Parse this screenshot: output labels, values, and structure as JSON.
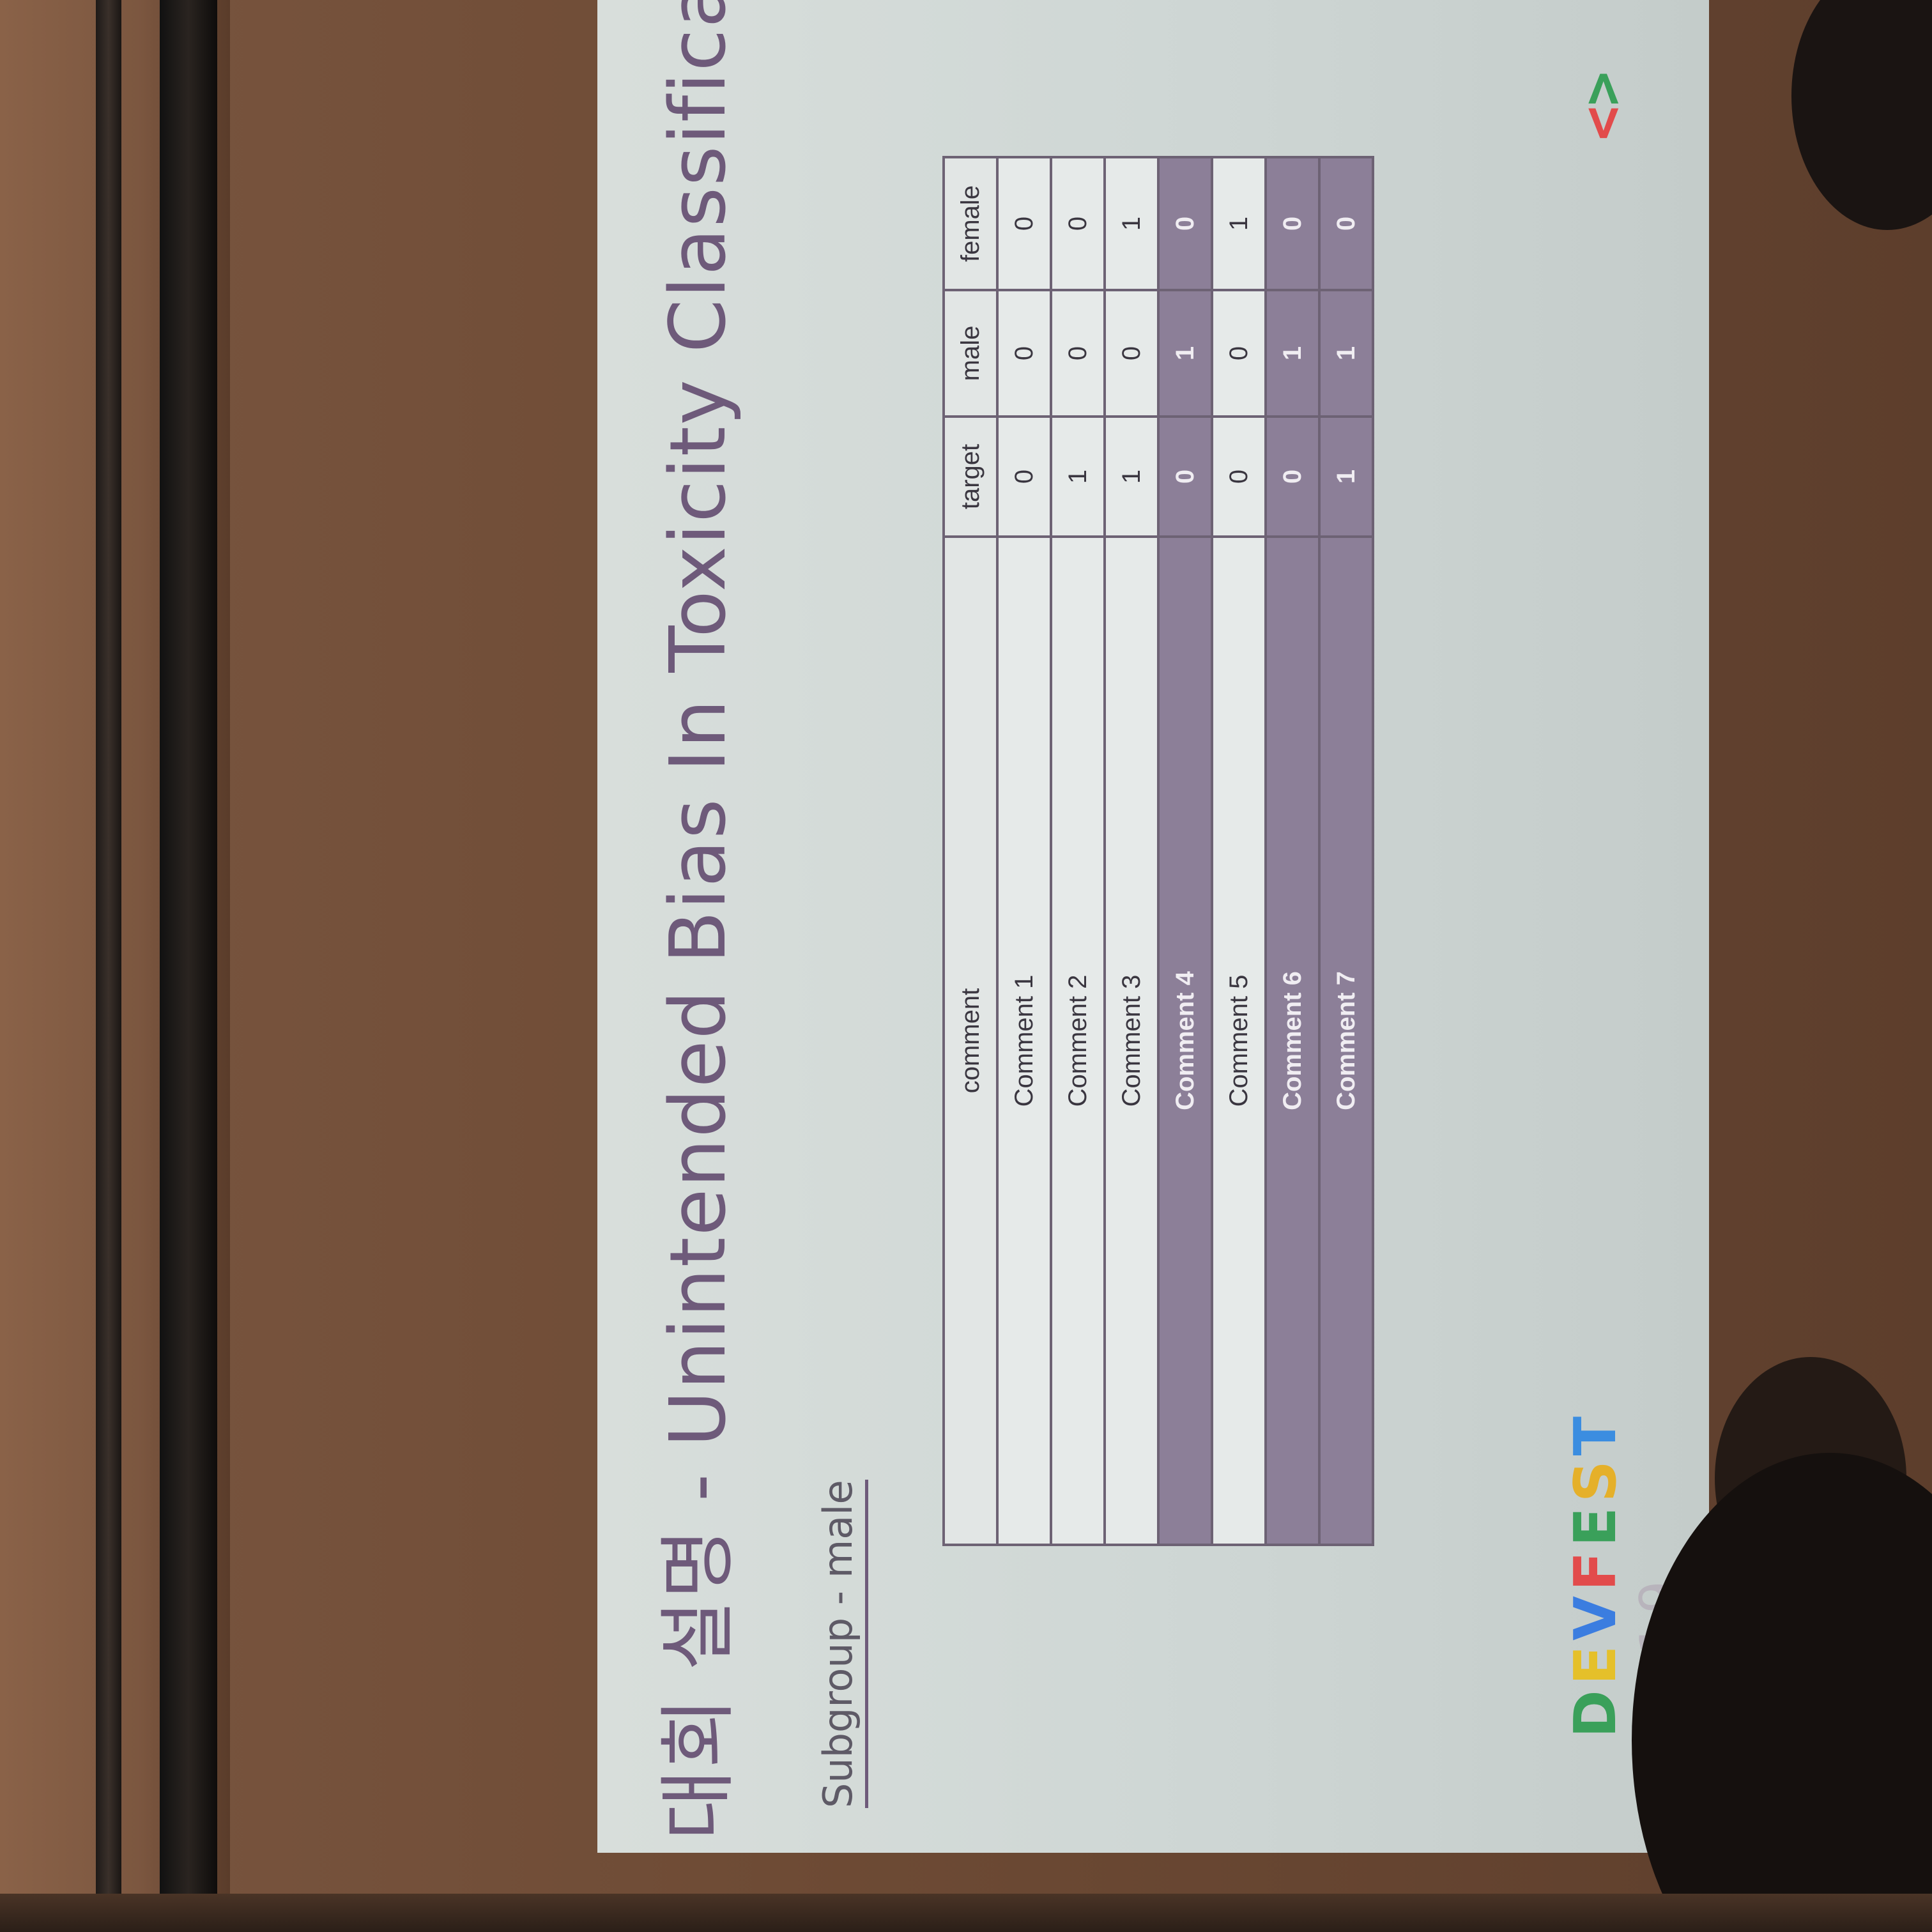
{
  "slide": {
    "title": "대회 설명 - Unintended Bias In Toxicity Classificatio",
    "subtitle": "Subgroup - male",
    "logo": {
      "letters": [
        "D",
        "E",
        "V",
        "F",
        "E",
        "S",
        "T"
      ],
      "year": "2019"
    },
    "code_icon": {
      "open": "<",
      "close": ">"
    }
  },
  "table": {
    "headers": [
      "comment",
      "target",
      "male",
      "female"
    ],
    "rows": [
      {
        "comment": "Comment 1",
        "target": "0",
        "male": "0",
        "female": "0",
        "style": "light"
      },
      {
        "comment": "Comment 2",
        "target": "1",
        "male": "0",
        "female": "0",
        "style": "light"
      },
      {
        "comment": "Comment 3",
        "target": "1",
        "male": "0",
        "female": "1",
        "style": "light"
      },
      {
        "comment": "Comment 4",
        "target": "0",
        "male": "1",
        "female": "0",
        "style": "dark"
      },
      {
        "comment": "Comment 5",
        "target": "0",
        "male": "0",
        "female": "1",
        "style": "light"
      },
      {
        "comment": "Comment 6",
        "target": "0",
        "male": "1",
        "female": "0",
        "style": "dark"
      },
      {
        "comment": "Comment 7",
        "target": "1",
        "male": "1",
        "female": "0",
        "style": "dark"
      }
    ]
  },
  "colors": {
    "title": "#6e5a7a",
    "highlight_row": "#8c7f98",
    "slide_bg": "#d8dedb"
  }
}
